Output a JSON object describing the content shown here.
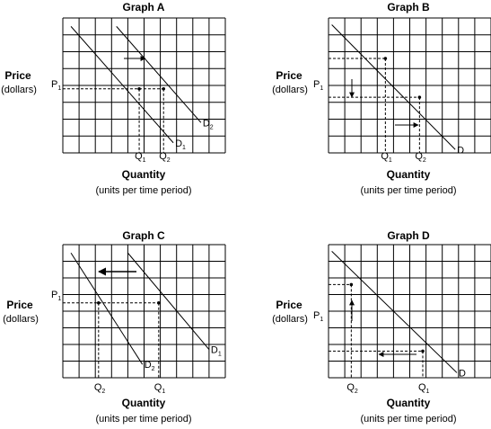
{
  "chart_data": [
    {
      "type": "line",
      "title": "Graph A",
      "ylabel": "Price",
      "ylabel_unit": "(dollars)",
      "xlabel": "Quantity",
      "xlabel_unit": "(units per time period)",
      "grid": true,
      "price_label": {
        "main": "P",
        "sub": "1"
      },
      "series": [
        {
          "name": {
            "main": "D",
            "sub": "1"
          },
          "x": [
            0.5,
            6.8
          ],
          "y": [
            7.5,
            0.6
          ]
        },
        {
          "name": {
            "main": "D",
            "sub": "2"
          },
          "x": [
            3.3,
            8.5
          ],
          "y": [
            7.5,
            1.8
          ]
        }
      ],
      "points": [
        {
          "label": {
            "main": "Q",
            "sub": "1"
          },
          "x": 4.7,
          "y": 3.8
        },
        {
          "label": {
            "main": "Q",
            "sub": "2"
          },
          "x": 6.2,
          "y": 3.8
        }
      ],
      "shift_arrow": "right",
      "xlim": [
        0,
        10
      ],
      "ylim": [
        0,
        8
      ]
    },
    {
      "type": "line",
      "title": "Graph B",
      "ylabel": "Price",
      "ylabel_unit": "(dollars)",
      "xlabel": "Quantity",
      "xlabel_unit": "(units per time period)",
      "grid": true,
      "price_label": {
        "main": "P",
        "sub": "1"
      },
      "series": [
        {
          "name": {
            "main": "D",
            "sub": ""
          },
          "x": [
            0.2,
            7.8
          ],
          "y": [
            7.6,
            0.2
          ]
        }
      ],
      "points": [
        {
          "label": {
            "main": "Q",
            "sub": "1"
          },
          "x": 3.5,
          "y": 5.6
        },
        {
          "label": {
            "main": "Q",
            "sub": "2"
          },
          "x": 5.6,
          "y": 3.3
        }
      ],
      "movement_arrows": [
        "down",
        "right"
      ],
      "xlim": [
        0,
        10
      ],
      "ylim": [
        0,
        8
      ]
    },
    {
      "type": "line",
      "title": "Graph C",
      "ylabel": "Price",
      "ylabel_unit": "(dollars)",
      "xlabel": "Quantity",
      "xlabel_unit": "(units per time period)",
      "grid": true,
      "price_label": {
        "main": "P",
        "sub": "1"
      },
      "series": [
        {
          "name": {
            "main": "D",
            "sub": "2"
          },
          "x": [
            0.5,
            4.9
          ],
          "y": [
            7.5,
            0.8
          ]
        },
        {
          "name": {
            "main": "D",
            "sub": "1"
          },
          "x": [
            4.0,
            9.0
          ],
          "y": [
            7.5,
            1.7
          ]
        }
      ],
      "points": [
        {
          "label": {
            "main": "Q",
            "sub": "2"
          },
          "x": 2.2,
          "y": 4.5
        },
        {
          "label": {
            "main": "Q",
            "sub": "1"
          },
          "x": 5.9,
          "y": 4.5
        }
      ],
      "shift_arrow": "left",
      "xlim": [
        0,
        10
      ],
      "ylim": [
        0,
        8
      ]
    },
    {
      "type": "line",
      "title": "Graph D",
      "ylabel": "Price",
      "ylabel_unit": "(dollars)",
      "xlabel": "Quantity",
      "xlabel_unit": "(units per time period)",
      "grid": true,
      "price_label": {
        "main": "P",
        "sub": "1"
      },
      "series": [
        {
          "name": {
            "main": "D",
            "sub": ""
          },
          "x": [
            0.2,
            7.9
          ],
          "y": [
            7.6,
            0.3
          ]
        }
      ],
      "points": [
        {
          "label": {
            "main": "Q",
            "sub": "2"
          },
          "x": 1.4,
          "y": 5.6
        },
        {
          "label": {
            "main": "Q",
            "sub": "1"
          },
          "x": 5.8,
          "y": 1.6
        }
      ],
      "movement_arrows": [
        "up",
        "left"
      ],
      "xlim": [
        0,
        10
      ],
      "ylim": [
        0,
        8
      ]
    }
  ]
}
